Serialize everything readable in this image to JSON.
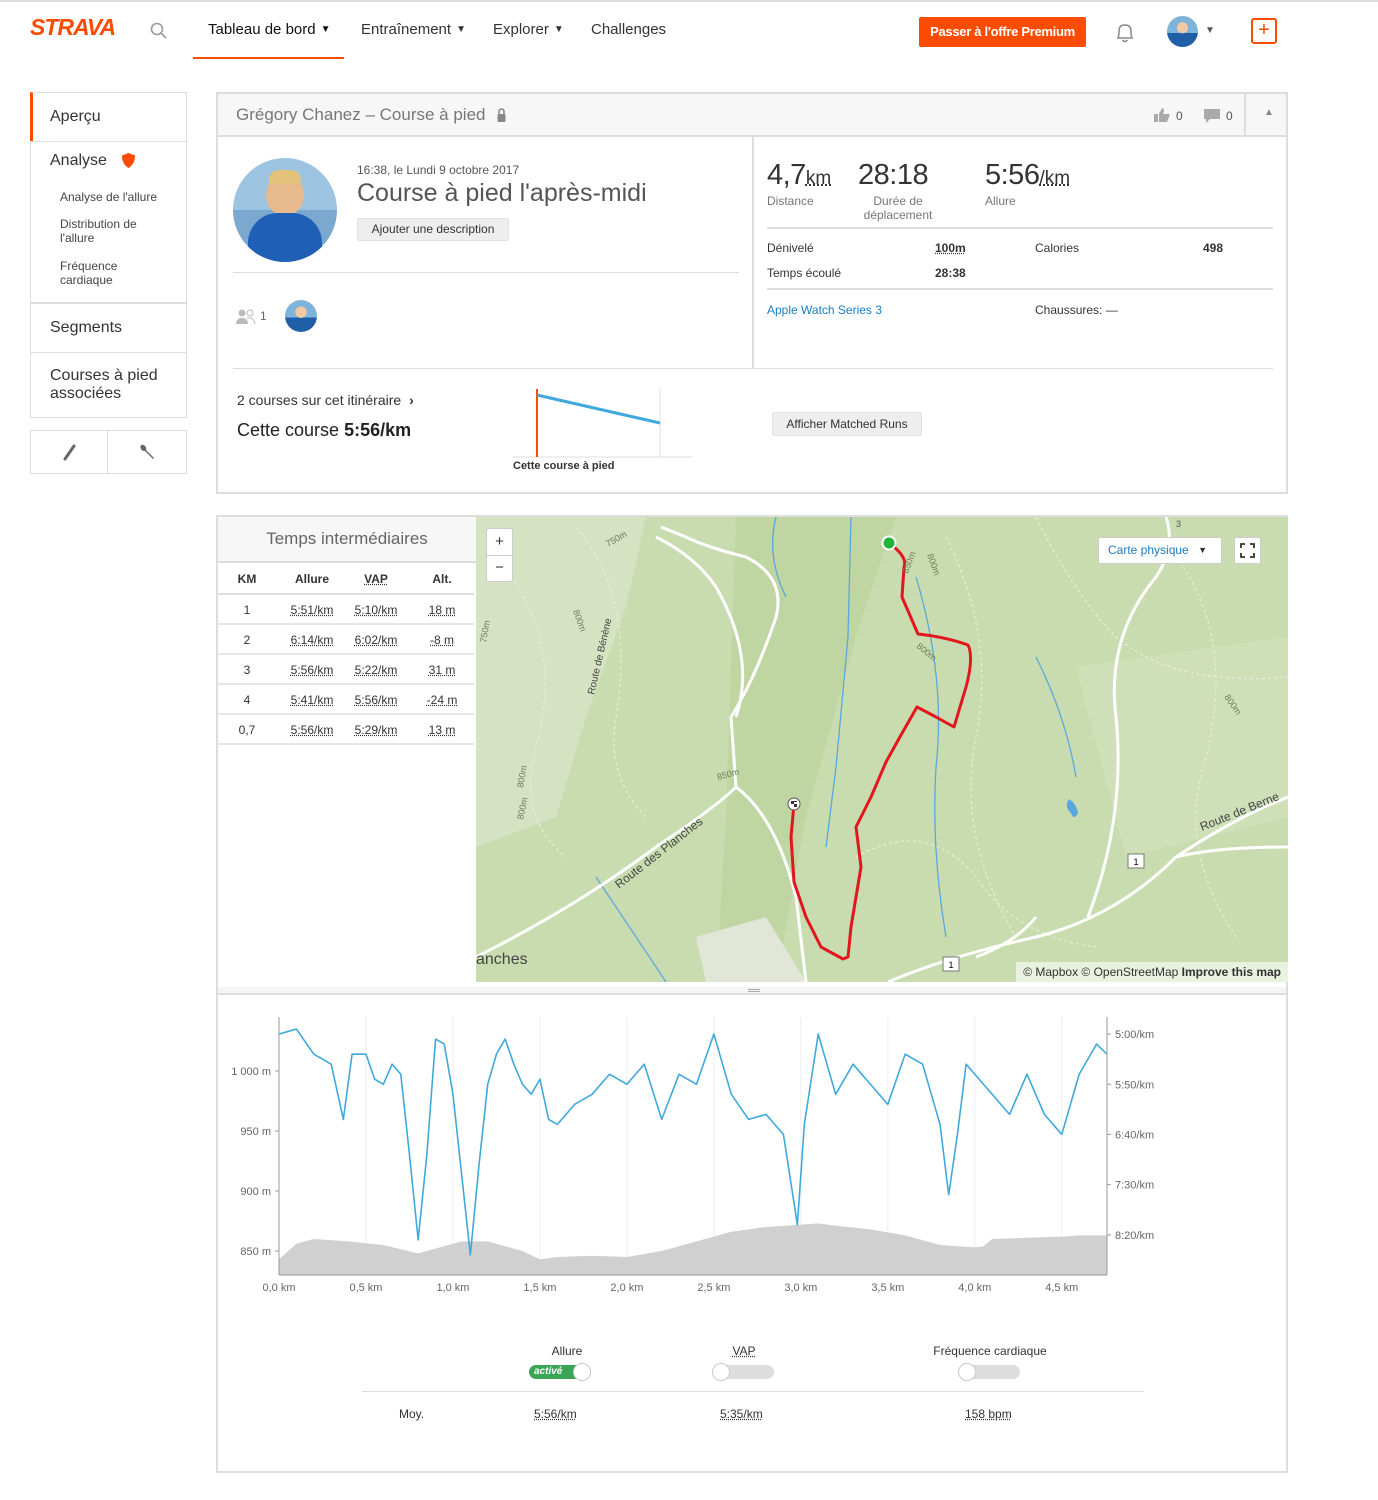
{
  "nav": {
    "logo": "STRAVA",
    "items": [
      "Tableau de bord",
      "Entraînement",
      "Explorer",
      "Challenges"
    ],
    "premium_label": "Passer à l'offre Premium",
    "plus_label": "+"
  },
  "sidebar": {
    "overview": "Aperçu",
    "analysis": "Analyse",
    "analysis_subitems": [
      "Analyse de l'allure",
      "Distribution de l'allure",
      "Fréquence cardiaque"
    ],
    "segments": "Segments",
    "related_runs": "Courses à pied associées"
  },
  "header": {
    "title": "Grégory Chanez – Course à pied",
    "kudos_count": "0",
    "comments_count": "0"
  },
  "activity": {
    "datetime": "16:38, le Lundi 9 octobre 2017",
    "name": "Course à pied l'après-midi",
    "add_description": "Ajouter une description",
    "athletes_count": "1"
  },
  "stats": {
    "distance_value": "4,7",
    "distance_unit": "km",
    "distance_label": "Distance",
    "moving_time_value": "28:18",
    "moving_time_label": "Durée de déplacement",
    "pace_value": "5:56",
    "pace_unit": "/km",
    "pace_label": "Allure",
    "elevation_label": "Dénivelé",
    "elevation_value": "100m",
    "calories_label": "Calories",
    "calories_value": "498",
    "elapsed_label": "Temps écoulé",
    "elapsed_value": "28:38",
    "device": "Apple Watch Series 3",
    "shoes_label": "Chaussures:",
    "shoes_value": "—"
  },
  "matched": {
    "runs_text": "2 courses sur cet itinéraire",
    "this_run_prefix": "Cette course",
    "this_run_pace": "5:56/km",
    "chart_caption": "Cette course à pied",
    "show_button": "Afficher Matched Runs"
  },
  "splits": {
    "title": "Temps intermédiaires",
    "headers": [
      "KM",
      "Allure",
      "VAP",
      "Alt."
    ],
    "rows": [
      {
        "km": "1",
        "pace": "5:51/km",
        "gap": "5:10/km",
        "alt": "18 m"
      },
      {
        "km": "2",
        "pace": "6:14/km",
        "gap": "6:02/km",
        "alt": "-8 m"
      },
      {
        "km": "3",
        "pace": "5:56/km",
        "gap": "5:22/km",
        "alt": "31 m"
      },
      {
        "km": "4",
        "pace": "5:41/km",
        "gap": "5:56/km",
        "alt": "-24 m"
      },
      {
        "km": "0,7",
        "pace": "5:56/km",
        "gap": "5:29/km",
        "alt": "13 m"
      }
    ]
  },
  "map": {
    "zoom_in": "+",
    "zoom_out": "−",
    "style_label": "Carte physique",
    "attribution": "© Mapbox © OpenStreetMap",
    "improve": "Improve this map",
    "labels": {
      "route_planches": "Route des Planches",
      "route_berne": "Route de Berne",
      "route_benene": "Route de Bénène",
      "town": "anches",
      "c750a": "750m",
      "c750b": "750m",
      "c800a": "800m",
      "c800b": "800m",
      "c800c": "800m",
      "c800d": "800m",
      "c800e": "800m",
      "c850a": "850m",
      "c850b": "850m",
      "c800f": "800m",
      "road1a": "1",
      "road1b": "1",
      "road3": "3"
    }
  },
  "chart_data": {
    "type": "line",
    "x_ticks": [
      "0,0 km",
      "0,5 km",
      "1,0 km",
      "1,5 km",
      "2,0 km",
      "2,5 km",
      "3,0 km",
      "3,5 km",
      "4,0 km",
      "4,5 km"
    ],
    "y_left_ticks": [
      "1 000 m",
      "950 m",
      "900 m",
      "850 m"
    ],
    "y_right_ticks": [
      "5:00/km",
      "5:50/km",
      "6:40/km",
      "7:30/km",
      "8:20/km"
    ],
    "xlim": [
      0,
      4.76
    ],
    "elevation_ylim": [
      830,
      1045
    ],
    "pace_ylim_sec_per_km": [
      283,
      540
    ],
    "series": [
      {
        "name": "Allure",
        "color": "#3fa9dc",
        "unit": "sec/km",
        "x": [
          0.0,
          0.1,
          0.2,
          0.3,
          0.37,
          0.42,
          0.5,
          0.55,
          0.6,
          0.65,
          0.7,
          0.75,
          0.8,
          0.85,
          0.9,
          0.95,
          1.0,
          1.05,
          1.1,
          1.15,
          1.2,
          1.25,
          1.3,
          1.35,
          1.4,
          1.45,
          1.5,
          1.55,
          1.6,
          1.65,
          1.7,
          1.8,
          1.9,
          2.0,
          2.1,
          2.2,
          2.3,
          2.4,
          2.5,
          2.55,
          2.6,
          2.7,
          2.8,
          2.9,
          2.98,
          3.02,
          3.1,
          3.2,
          3.3,
          3.4,
          3.5,
          3.6,
          3.7,
          3.8,
          3.85,
          3.9,
          3.95,
          4.0,
          4.05,
          4.1,
          4.2,
          4.3,
          4.4,
          4.5,
          4.6,
          4.7,
          4.76
        ],
        "y": [
          300,
          295,
          320,
          330,
          385,
          320,
          320,
          345,
          350,
          330,
          340,
          420,
          505,
          420,
          305,
          310,
          360,
          440,
          520,
          430,
          350,
          320,
          305,
          330,
          350,
          360,
          345,
          385,
          390,
          380,
          370,
          360,
          340,
          350,
          330,
          385,
          340,
          350,
          300,
          330,
          360,
          385,
          380,
          400,
          490,
          390,
          300,
          360,
          330,
          350,
          370,
          320,
          330,
          390,
          460,
          400,
          330,
          340,
          350,
          360,
          380,
          340,
          380,
          400,
          340,
          310,
          320
        ]
      },
      {
        "name": "Altitude",
        "color": "#d0d0d0",
        "unit": "m",
        "x": [
          0.0,
          0.1,
          0.2,
          0.4,
          0.6,
          0.8,
          1.0,
          1.05,
          1.2,
          1.4,
          1.5,
          1.6,
          1.8,
          2.0,
          2.2,
          2.4,
          2.6,
          2.8,
          3.0,
          3.1,
          3.2,
          3.4,
          3.6,
          3.8,
          4.0,
          4.05,
          4.1,
          4.3,
          4.5,
          4.6,
          4.76
        ],
        "y": [
          843,
          856,
          860,
          858,
          855,
          848,
          856,
          858,
          858,
          850,
          843,
          845,
          846,
          845,
          850,
          858,
          866,
          870,
          872,
          873,
          871,
          868,
          863,
          855,
          853,
          854,
          860,
          861,
          862,
          863,
          863
        ]
      }
    ]
  },
  "legend": {
    "pace_label": "Allure",
    "pace_state": "activé",
    "gap_label": "VAP",
    "hr_label": "Fréquence cardiaque",
    "avg_label": "Moy.",
    "avg_pace": "5:56/km",
    "avg_gap": "5:35/km",
    "avg_hr": "158 bpm"
  },
  "colors": {
    "brand": "#fc4c02",
    "route": "#e3161e",
    "pace_line": "#3fa9dc",
    "link": "#1a7dc0"
  }
}
